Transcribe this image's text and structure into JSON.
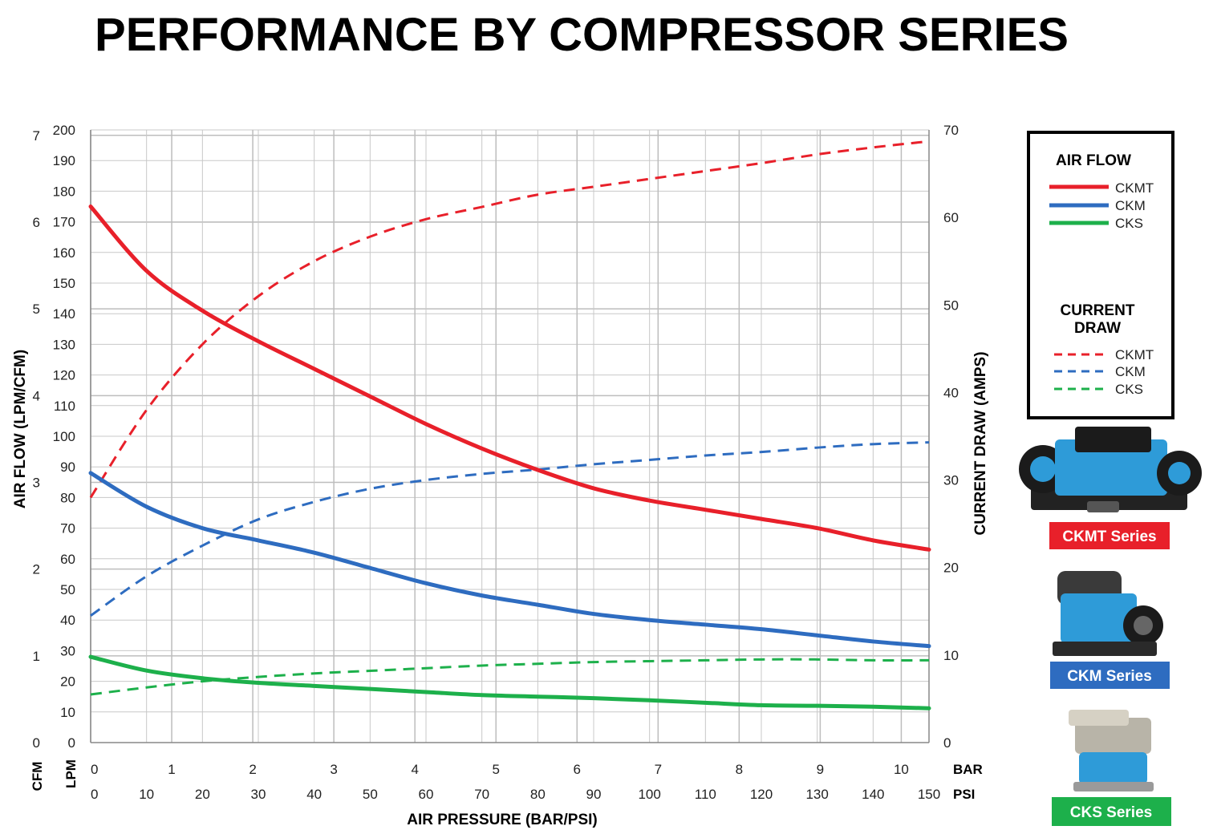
{
  "chart_data": {
    "type": "line",
    "title": "PERFORMANCE BY COMPRESSOR SERIES",
    "xlabel": "AIR PRESSURE (BAR/PSI)",
    "ylabel_left": "AIR FLOW (LPM/CFM)",
    "ylabel_right": "CURRENT DRAW (AMPS)",
    "x_unit": "PSI",
    "xlim": [
      0,
      150
    ],
    "ylim_left": [
      0,
      200
    ],
    "ylim_right": [
      0,
      70
    ],
    "grid": true,
    "axis_unit_labels": {
      "cfm": "CFM",
      "lpm": "LPM",
      "bar": "BAR",
      "psi": "PSI"
    },
    "ticks": {
      "lpm": [
        "0",
        "10",
        "20",
        "30",
        "40",
        "50",
        "60",
        "70",
        "80",
        "90",
        "100",
        "110",
        "120",
        "130",
        "140",
        "150",
        "160",
        "170",
        "180",
        "190",
        "200"
      ],
      "cfm": [
        "0",
        "1",
        "2",
        "3",
        "4",
        "5",
        "6",
        "7"
      ],
      "amps": [
        "0",
        "10",
        "20",
        "30",
        "40",
        "50",
        "60",
        "70"
      ],
      "bar": [
        "0",
        "1",
        "2",
        "3",
        "4",
        "5",
        "6",
        "7",
        "8",
        "9",
        "10"
      ],
      "psi": [
        "0",
        "10",
        "20",
        "30",
        "40",
        "50",
        "60",
        "70",
        "80",
        "90",
        "100",
        "110",
        "120",
        "130",
        "140",
        "150"
      ]
    },
    "series": [
      {
        "name": "CKMT",
        "group": "AIR FLOW",
        "axis": "left",
        "style": "solid",
        "color": "#e8202a",
        "x": [
          0,
          10,
          20,
          30,
          40,
          50,
          60,
          70,
          80,
          90,
          100,
          110,
          120,
          130,
          140,
          150
        ],
        "y": [
          175,
          154,
          141,
          131,
          122,
          113,
          104,
          96,
          89,
          83,
          79,
          76,
          73,
          70,
          66,
          63
        ]
      },
      {
        "name": "CKM",
        "group": "AIR FLOW",
        "axis": "left",
        "style": "solid",
        "color": "#2e6cc0",
        "x": [
          0,
          10,
          20,
          30,
          40,
          50,
          60,
          70,
          80,
          90,
          100,
          110,
          120,
          130,
          140,
          150
        ],
        "y": [
          88,
          77,
          70,
          66,
          62,
          57,
          52,
          48,
          45,
          42,
          40,
          38.5,
          37,
          35,
          33,
          31.5
        ]
      },
      {
        "name": "CKS",
        "group": "AIR FLOW",
        "axis": "left",
        "style": "solid",
        "color": "#1db04b",
        "x": [
          0,
          10,
          20,
          30,
          40,
          50,
          60,
          70,
          80,
          90,
          100,
          110,
          120,
          130,
          140,
          150
        ],
        "y": [
          28,
          23.5,
          21,
          19.5,
          18.5,
          17.5,
          16.5,
          15.5,
          15,
          14.5,
          13.8,
          13,
          12.2,
          12,
          11.7,
          11.2
        ]
      },
      {
        "name": "CKMT",
        "group": "CURRENT DRAW",
        "axis": "right",
        "style": "dashed",
        "color": "#e8202a",
        "x": [
          0,
          10,
          20,
          30,
          40,
          50,
          60,
          70,
          80,
          90,
          100,
          110,
          120,
          130,
          140,
          150
        ],
        "y": [
          28,
          38,
          45.5,
          51,
          55,
          57.8,
          59.8,
          61.2,
          62.6,
          63.5,
          64.4,
          65.3,
          66.2,
          67.2,
          68,
          68.7
        ]
      },
      {
        "name": "CKM",
        "group": "CURRENT DRAW",
        "axis": "right",
        "style": "dashed",
        "color": "#2e6cc0",
        "x": [
          0,
          10,
          20,
          30,
          40,
          50,
          60,
          70,
          80,
          90,
          100,
          110,
          120,
          130,
          140,
          150
        ],
        "y": [
          14.5,
          19,
          22.5,
          25.5,
          27.5,
          29,
          30,
          30.7,
          31.2,
          31.8,
          32.3,
          32.8,
          33.2,
          33.7,
          34.1,
          34.3
        ]
      },
      {
        "name": "CKS",
        "group": "CURRENT DRAW",
        "axis": "right",
        "style": "dashed",
        "color": "#1db04b",
        "x": [
          0,
          10,
          20,
          30,
          40,
          50,
          60,
          70,
          80,
          90,
          100,
          110,
          120,
          130,
          140,
          150
        ],
        "y": [
          5.5,
          6.3,
          7,
          7.5,
          7.9,
          8.2,
          8.5,
          8.8,
          9,
          9.2,
          9.3,
          9.4,
          9.5,
          9.5,
          9.4,
          9.4
        ]
      }
    ],
    "legend": {
      "placement": "right",
      "air_flow_title": "AIR FLOW",
      "current_draw_title_line1": "CURRENT",
      "current_draw_title_line2": "DRAW",
      "items": [
        "CKMT",
        "CKM",
        "CKS"
      ]
    }
  },
  "products": [
    {
      "label": "CKMT Series",
      "color": "#e8202a"
    },
    {
      "label": "CKM Series",
      "color": "#2e6cc0"
    },
    {
      "label": "CKS Series",
      "color": "#1db04b"
    }
  ]
}
